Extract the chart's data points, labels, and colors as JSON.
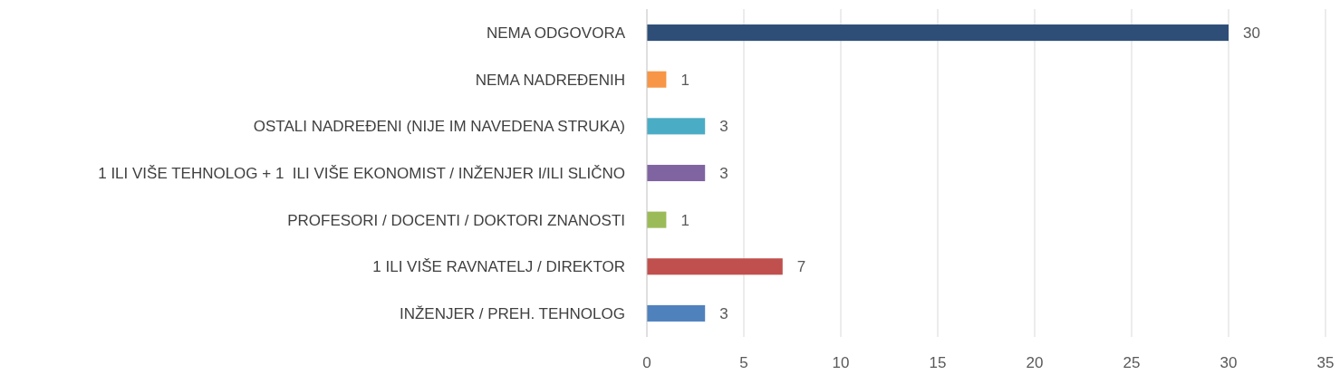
{
  "chart_data": {
    "type": "bar",
    "orientation": "horizontal",
    "categories": [
      "NEMA ODGOVORA",
      "NEMA NADREĐENIH",
      "OSTALI NADREĐENI (NIJE IM NAVEDENA STRUKA)",
      "1 ILI VIŠE TEHNOLOG + 1  ILI VIŠE EKONOMIST / INŽENJER I/ILI SLIČNO",
      "PROFESORI / DOCENTI / DOKTORI ZNANOSTI",
      "1 ILI VIŠE RAVNATELJ / DIREKTOR",
      "INŽENJER / PREH. TEHNOLOG"
    ],
    "values": [
      30,
      1,
      3,
      3,
      1,
      7,
      3
    ],
    "colors": [
      "#2e4e78",
      "#f79646",
      "#4bacc6",
      "#8064a2",
      "#9bbb59",
      "#c0504d",
      "#4f81bd"
    ],
    "xlim": [
      0,
      35
    ],
    "xticks": [
      0,
      5,
      10,
      15,
      20,
      25,
      30,
      35
    ],
    "grid": "x",
    "data_labels": true
  }
}
